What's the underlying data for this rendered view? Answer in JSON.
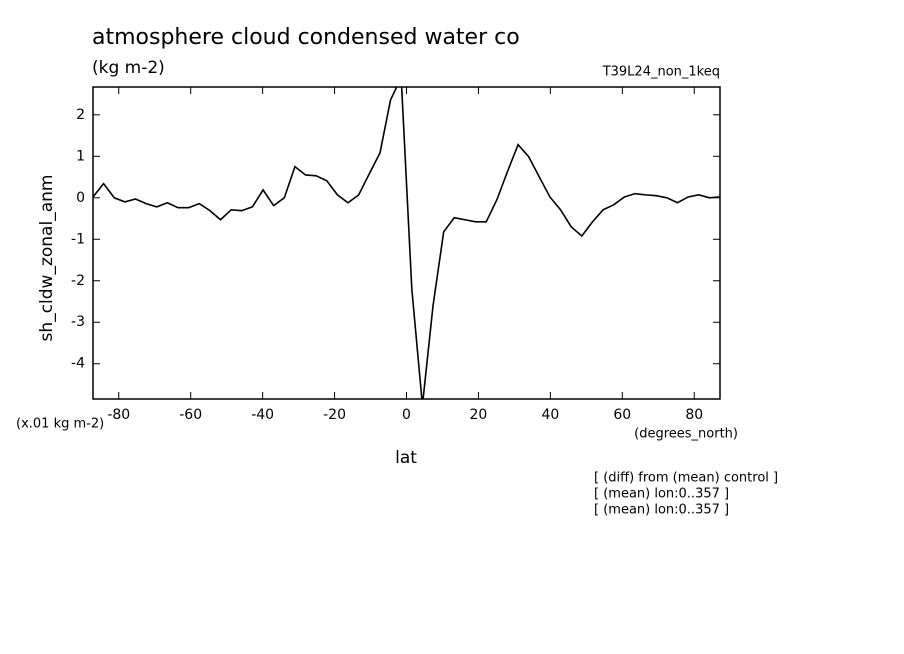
{
  "chart_data": {
    "type": "line",
    "title": "atmosphere cloud condensed water co",
    "subtitle": "(kg m-2)",
    "run_label": "T39L24_non_1keq",
    "y_label": "sh_cldw_zonal_anm",
    "y_unit": "(x.01 kg m-2)",
    "x_unit": "(degrees_north)",
    "x_label": "lat",
    "notes": [
      "[ (diff) from (mean) control ]",
      "[ (mean) lon:0..357 ]",
      "[ (mean) lon:0..357 ]"
    ],
    "x": [
      -87.16,
      -84.21,
      -81.25,
      -78.3,
      -75.34,
      -72.39,
      -69.43,
      -66.48,
      -63.52,
      -60.57,
      -57.61,
      -54.66,
      -51.7,
      -48.75,
      -45.79,
      -42.84,
      -39.88,
      -36.93,
      -33.97,
      -31.02,
      -28.07,
      -25.11,
      -22.16,
      -19.2,
      -16.25,
      -13.29,
      -10.34,
      -7.38,
      -4.43,
      -1.48,
      1.48,
      4.43,
      7.38,
      10.34,
      13.29,
      16.25,
      19.2,
      22.16,
      25.11,
      28.07,
      31.02,
      33.97,
      36.93,
      39.88,
      42.84,
      45.79,
      48.75,
      51.7,
      54.66,
      57.61,
      60.57,
      63.52,
      66.48,
      69.43,
      72.39,
      75.34,
      78.3,
      81.25,
      84.21,
      87.16
    ],
    "series": [
      {
        "color": "#000000",
        "values": [
          0.02,
          0.34,
          0.0,
          -0.1,
          -0.03,
          -0.14,
          -0.22,
          -0.12,
          -0.24,
          -0.24,
          -0.14,
          -0.31,
          -0.53,
          -0.29,
          -0.31,
          -0.22,
          0.19,
          -0.19,
          0.0,
          0.75,
          0.55,
          0.53,
          0.41,
          0.07,
          -0.12,
          0.07,
          0.58,
          1.08,
          2.36,
          2.9,
          -2.2,
          -5.0,
          -2.6,
          -0.82,
          -0.48,
          -0.53,
          -0.58,
          -0.58,
          -0.05,
          0.63,
          1.28,
          0.99,
          0.5,
          0.02,
          -0.29,
          -0.7,
          -0.92,
          -0.58,
          -0.29,
          -0.17,
          0.02,
          0.1,
          0.07,
          0.05,
          0.0,
          -0.12,
          0.02,
          0.07,
          0.0,
          0.02
        ]
      }
    ],
    "xlim": [
      -87.16,
      87.16
    ],
    "ylim": [
      -4.85,
      2.67
    ],
    "xticks": [
      -80,
      -60,
      -40,
      -20,
      0,
      20,
      40,
      60,
      80
    ],
    "yticks": [
      -4,
      -3,
      -2,
      -1,
      0,
      1,
      2
    ]
  }
}
